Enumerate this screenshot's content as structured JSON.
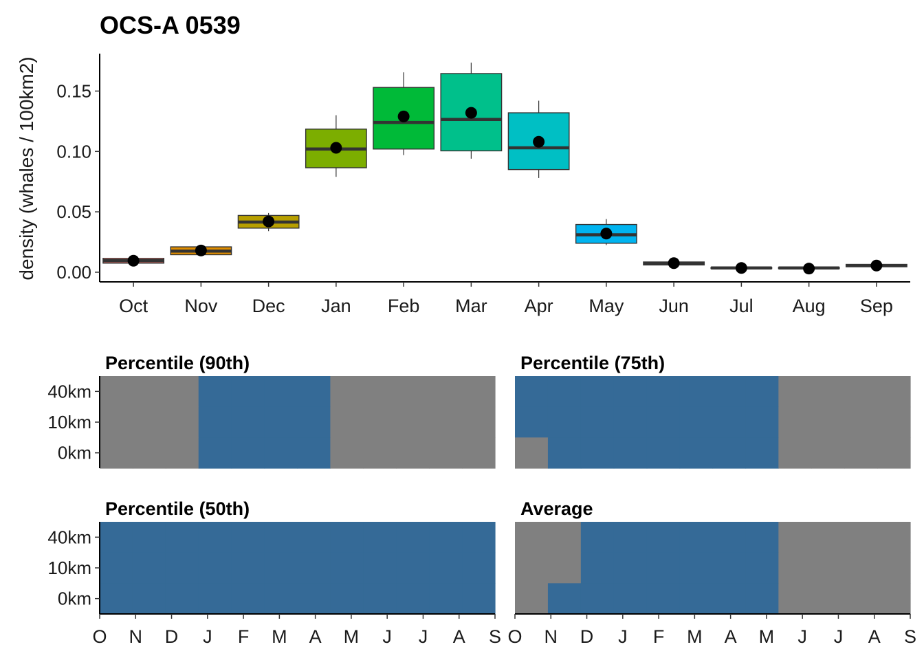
{
  "chart_data": [
    {
      "type": "box",
      "title": "OCS-A 0539",
      "xlabel": "",
      "ylabel": "density (whales / 100km2)",
      "ylim": [
        -0.008,
        0.181
      ],
      "yticks": [
        "0.00",
        "0.05",
        "0.10",
        "0.15"
      ],
      "categories": [
        "Oct",
        "Nov",
        "Dec",
        "Jan",
        "Feb",
        "Mar",
        "Apr",
        "May",
        "Jun",
        "Jul",
        "Aug",
        "Sep"
      ],
      "colors": [
        "#F8766D",
        "#DE8C00",
        "#B79F00",
        "#7CAE00",
        "#00BA38",
        "#00C08B",
        "#00BFC4",
        "#00B4F0",
        "#619CFF",
        "#C77CFF",
        "#F564E3",
        "#FF64B0"
      ],
      "boxes": [
        {
          "whisker_low": 0.0075,
          "q1": 0.0075,
          "median": 0.0095,
          "q3": 0.0115,
          "whisker_high": 0.0115,
          "mean": 0.0095
        },
        {
          "whisker_low": 0.0145,
          "q1": 0.0145,
          "median": 0.0175,
          "q3": 0.021,
          "whisker_high": 0.021,
          "mean": 0.018
        },
        {
          "whisker_low": 0.034,
          "q1": 0.0365,
          "median": 0.0415,
          "q3": 0.047,
          "whisker_high": 0.049,
          "mean": 0.042
        },
        {
          "whisker_low": 0.079,
          "q1": 0.0865,
          "median": 0.102,
          "q3": 0.1185,
          "whisker_high": 0.13,
          "mean": 0.103
        },
        {
          "whisker_low": 0.097,
          "q1": 0.102,
          "median": 0.124,
          "q3": 0.153,
          "whisker_high": 0.1655,
          "mean": 0.129
        },
        {
          "whisker_low": 0.094,
          "q1": 0.1005,
          "median": 0.1265,
          "q3": 0.1645,
          "whisker_high": 0.1735,
          "mean": 0.132
        },
        {
          "whisker_low": 0.078,
          "q1": 0.085,
          "median": 0.103,
          "q3": 0.132,
          "whisker_high": 0.142,
          "mean": 0.108
        },
        {
          "whisker_low": 0.0225,
          "q1": 0.024,
          "median": 0.031,
          "q3": 0.0395,
          "whisker_high": 0.044,
          "mean": 0.032
        },
        {
          "whisker_low": 0.006,
          "q1": 0.006,
          "median": 0.0075,
          "q3": 0.0085,
          "whisker_high": 0.0085,
          "mean": 0.0075
        },
        {
          "whisker_low": 0.003,
          "q1": 0.003,
          "median": 0.0035,
          "q3": 0.004,
          "whisker_high": 0.004,
          "mean": 0.0035
        },
        {
          "whisker_low": 0.003,
          "q1": 0.003,
          "median": 0.0035,
          "q3": 0.004,
          "whisker_high": 0.004,
          "mean": 0.003
        },
        {
          "whisker_low": 0.0045,
          "q1": 0.0045,
          "median": 0.0055,
          "q3": 0.0065,
          "whisker_high": 0.0065,
          "mean": 0.0055
        }
      ]
    },
    {
      "type": "heatmap",
      "panels": [
        {
          "title": "Percentile (90th)",
          "rows": [
            "40km",
            "10km",
            "0km"
          ],
          "months": [
            "O",
            "N",
            "D",
            "J",
            "F",
            "M",
            "A",
            "M",
            "J",
            "J",
            "A",
            "S"
          ],
          "grid": [
            [
              0,
              0,
              0,
              1,
              1,
              1,
              1,
              0,
              0,
              0,
              0,
              0
            ],
            [
              0,
              0,
              0,
              1,
              1,
              1,
              1,
              0,
              0,
              0,
              0,
              0
            ],
            [
              0,
              0,
              0,
              1,
              1,
              1,
              1,
              0,
              0,
              0,
              0,
              0
            ]
          ]
        },
        {
          "title": "Percentile (75th)",
          "rows": [
            "40km",
            "10km",
            "0km"
          ],
          "months": [
            "O",
            "N",
            "D",
            "J",
            "F",
            "M",
            "A",
            "M",
            "J",
            "J",
            "A",
            "S"
          ],
          "grid": [
            [
              1,
              1,
              1,
              1,
              1,
              1,
              1,
              1,
              0,
              0,
              0,
              0
            ],
            [
              1,
              1,
              1,
              1,
              1,
              1,
              1,
              1,
              0,
              0,
              0,
              0
            ],
            [
              0,
              1,
              1,
              1,
              1,
              1,
              1,
              1,
              0,
              0,
              0,
              0
            ]
          ]
        },
        {
          "title": "Percentile (50th)",
          "rows": [
            "40km",
            "10km",
            "0km"
          ],
          "months": [
            "O",
            "N",
            "D",
            "J",
            "F",
            "M",
            "A",
            "M",
            "J",
            "J",
            "A",
            "S"
          ],
          "grid": [
            [
              1,
              1,
              1,
              1,
              1,
              1,
              1,
              1,
              1,
              1,
              1,
              1
            ],
            [
              1,
              1,
              1,
              1,
              1,
              1,
              1,
              1,
              1,
              1,
              1,
              1
            ],
            [
              1,
              1,
              1,
              1,
              1,
              1,
              1,
              1,
              1,
              1,
              1,
              1
            ]
          ]
        },
        {
          "title": "Average",
          "rows": [
            "40km",
            "10km",
            "0km"
          ],
          "months": [
            "O",
            "N",
            "D",
            "J",
            "F",
            "M",
            "A",
            "M",
            "J",
            "J",
            "A",
            "S"
          ],
          "grid": [
            [
              0,
              0,
              1,
              1,
              1,
              1,
              1,
              1,
              0,
              0,
              0,
              0
            ],
            [
              0,
              0,
              1,
              1,
              1,
              1,
              1,
              1,
              0,
              0,
              0,
              0
            ],
            [
              0,
              1,
              1,
              1,
              1,
              1,
              1,
              1,
              0,
              0,
              0,
              0
            ]
          ]
        }
      ],
      "x_tick_labels": [
        "O",
        "N",
        "D",
        "J",
        "F",
        "M",
        "A",
        "M",
        "J",
        "J",
        "A",
        "S"
      ],
      "on_color": "#356A97",
      "off_color": "#808080"
    }
  ]
}
